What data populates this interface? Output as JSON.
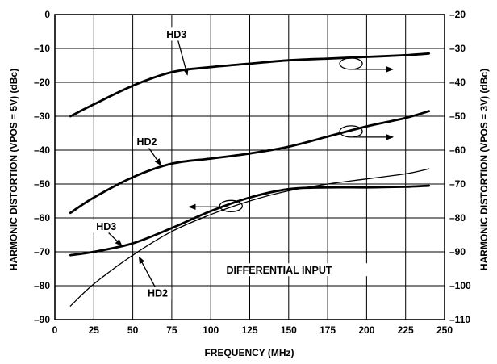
{
  "chart_data": {
    "type": "line",
    "xlabel": "FREQUENCY (MHz)",
    "ylabel_left": "HARMONIC DISTORTION (VPOS = 5V) (dBc)",
    "ylabel_right": "HARMONIC DISTORTION (VPOS = 3V) (dBc)",
    "xlim": [
      0,
      250
    ],
    "ylim_left": [
      -90,
      0
    ],
    "ylim_right": [
      -110,
      -20
    ],
    "x_ticks": [
      0,
      25,
      50,
      75,
      100,
      125,
      150,
      175,
      200,
      225,
      250
    ],
    "y_ticks_left": [
      0,
      -10,
      -20,
      -30,
      -40,
      -50,
      -60,
      -70,
      -80,
      -90
    ],
    "y_ticks_right": [
      -20,
      -30,
      -40,
      -50,
      -60,
      -70,
      -80,
      -90,
      -100,
      -110
    ],
    "grid": true,
    "series": [
      {
        "axis": "right",
        "x": [
          10,
          25,
          50,
          75,
          100,
          125,
          150,
          175,
          200,
          225,
          240
        ],
        "y": [
          -50,
          -46.5,
          -41,
          -37,
          -35.5,
          -34.5,
          -33.5,
          -33,
          -32.5,
          -32,
          -31.5
        ],
        "stroke": "thick"
      },
      {
        "axis": "right",
        "x": [
          10,
          25,
          50,
          75,
          100,
          125,
          150,
          175,
          200,
          225,
          240
        ],
        "y": [
          -78.5,
          -74,
          -68,
          -64,
          -62.5,
          -61,
          -59,
          -56,
          -53,
          -50.5,
          -48.5
        ],
        "stroke": "thick"
      },
      {
        "axis": "left",
        "x": [
          10,
          25,
          50,
          75,
          100,
          125,
          150,
          175,
          200,
          225,
          240
        ],
        "y": [
          -71,
          -70,
          -67.5,
          -63,
          -58,
          -54,
          -51.5,
          -51,
          -51,
          -50.8,
          -50.5
        ],
        "stroke": "thick"
      },
      {
        "axis": "left",
        "x": [
          10,
          25,
          50,
          75,
          100,
          125,
          150,
          175,
          200,
          225,
          240
        ],
        "y": [
          -86,
          -79.5,
          -71,
          -64,
          -59,
          -55,
          -52,
          -50,
          -48.5,
          -47,
          -45.5
        ],
        "stroke": "thin"
      }
    ],
    "curve_labels": [
      {
        "text": "HD3",
        "x": 78,
        "y": -5.8,
        "arrow_to": [
          85,
          -17.8
        ]
      },
      {
        "text": "HD2",
        "x": 59,
        "y": -37.5,
        "arrow_to": [
          68,
          -44.5
        ]
      },
      {
        "text": "HD3",
        "x": 33,
        "y": -62.5,
        "arrow_to": [
          43,
          -68.2
        ]
      },
      {
        "text": "HD2",
        "x": 66,
        "y": -82.2,
        "arrow_to": [
          54,
          -71.5
        ]
      }
    ],
    "annotations": [
      {
        "text": "DIFFERENTIAL INPUT",
        "x": 110,
        "y": -76
      }
    ],
    "axis_arrows": [
      {
        "direction": "right",
        "x": 190,
        "y": -14.5
      },
      {
        "direction": "right",
        "x": 190,
        "y": -34.5
      },
      {
        "direction": "left",
        "x": 113,
        "y": -56.5
      }
    ]
  }
}
